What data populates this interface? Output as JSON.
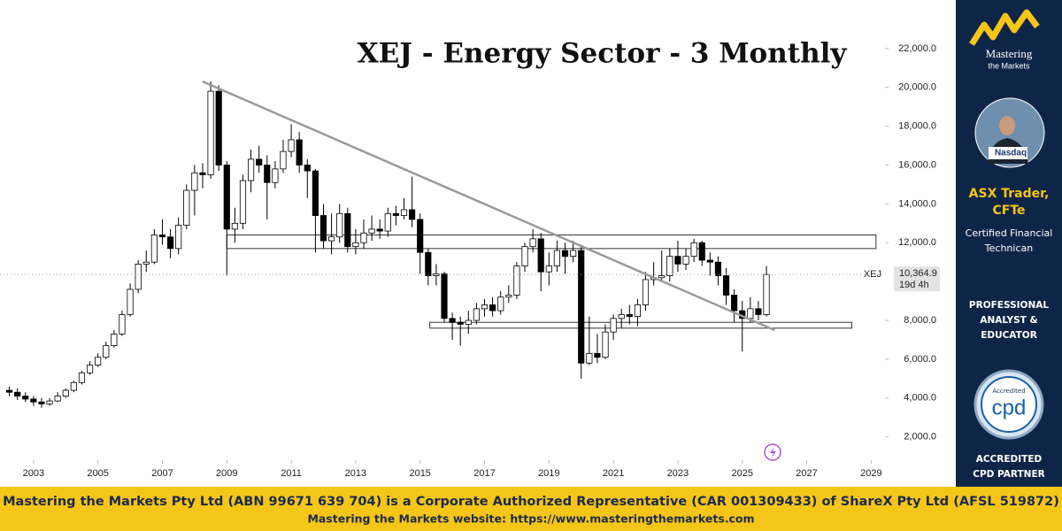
{
  "chart_data": {
    "type": "candlestick",
    "title": "XEJ - Energy Sector - 3 Monthly",
    "symbol": "XEJ",
    "last_price_label": "10,364.9",
    "countdown": "19d 4h",
    "up_color": "#ffffff",
    "down_color": "#000000",
    "xlim": [
      2001.96,
      2029.43
    ],
    "xticks": [
      2003,
      2005,
      2007,
      2009,
      2011,
      2013,
      2015,
      2017,
      2019,
      2021,
      2023,
      2025,
      2027,
      2029
    ],
    "ylim": [
      800,
      24500
    ],
    "yticks": [
      {
        "value": 2000,
        "label": "2,000.0"
      },
      {
        "value": 4000,
        "label": "4,000.0"
      },
      {
        "value": 6000,
        "label": "6,000.0"
      },
      {
        "value": 8000,
        "label": "8,000.0"
      },
      {
        "value": 12000,
        "label": "12,000.0"
      },
      {
        "value": 14000,
        "label": "14,000.0"
      },
      {
        "value": 16000,
        "label": "16,000.0"
      },
      {
        "value": 18000,
        "label": "18,000.0"
      },
      {
        "value": 20000,
        "label": "20,000.0"
      },
      {
        "value": 22000,
        "label": "22,000.0"
      }
    ],
    "x": [
      2002.25,
      2002.5,
      2002.75,
      2003,
      2003.25,
      2003.5,
      2003.75,
      2004,
      2004.25,
      2004.5,
      2004.75,
      2005,
      2005.25,
      2005.5,
      2005.75,
      2006,
      2006.25,
      2006.5,
      2006.75,
      2007,
      2007.25,
      2007.5,
      2007.75,
      2008,
      2008.25,
      2008.5,
      2008.75,
      2009,
      2009.25,
      2009.5,
      2009.75,
      2010,
      2010.25,
      2010.5,
      2010.75,
      2011,
      2011.25,
      2011.5,
      2011.75,
      2012,
      2012.25,
      2012.5,
      2012.75,
      2013,
      2013.25,
      2013.5,
      2013.75,
      2014,
      2014.25,
      2014.5,
      2014.75,
      2015,
      2015.25,
      2015.5,
      2015.75,
      2016,
      2016.25,
      2016.5,
      2016.75,
      2017,
      2017.25,
      2017.5,
      2017.75,
      2018,
      2018.25,
      2018.5,
      2018.75,
      2019,
      2019.25,
      2019.5,
      2019.75,
      2020,
      2020.25,
      2020.5,
      2020.75,
      2021,
      2021.25,
      2021.5,
      2021.75,
      2022,
      2022.25,
      2022.5,
      2022.75,
      2023,
      2023.25,
      2023.5,
      2023.75,
      2024,
      2024.25,
      2024.5,
      2024.75,
      2025,
      2025.25,
      2025.5,
      2025.75
    ],
    "open": [
      4400,
      4300,
      4100,
      3950,
      3800,
      3700,
      3850,
      4100,
      4400,
      4800,
      5300,
      5700,
      6100,
      6700,
      7300,
      8300,
      9600,
      10900,
      11000,
      12400,
      12300,
      11700,
      12900,
      14700,
      15600,
      15500,
      19800,
      16000,
      12700,
      13000,
      15200,
      16300,
      16000,
      15100,
      15800,
      16700,
      17300,
      16000,
      15700,
      13400,
      12100,
      12300,
      13500,
      11800,
      12000,
      12500,
      12700,
      12600,
      13500,
      13400,
      13700,
      13200,
      11500,
      10300,
      10400,
      8100,
      7900,
      7800,
      8000,
      8600,
      8800,
      8500,
      9200,
      9300,
      10800,
      11800,
      12200,
      10500,
      10800,
      11600,
      11300,
      11600,
      5800,
      6300,
      6100,
      7400,
      8100,
      8300,
      8200,
      8800,
      10100,
      10200,
      10300,
      11300,
      10900,
      11300,
      12000,
      11100,
      11000,
      10300,
      9300,
      8500,
      8100,
      8600,
      8300
    ],
    "high": [
      4600,
      4500,
      4300,
      4100,
      4000,
      4000,
      4300,
      4500,
      4900,
      5400,
      5900,
      6300,
      6900,
      7500,
      8500,
      9900,
      11100,
      11600,
      12700,
      13200,
      12700,
      13300,
      15000,
      16000,
      16100,
      20300,
      20100,
      16200,
      13800,
      15500,
      16800,
      17000,
      16500,
      16200,
      17300,
      18100,
      17700,
      16300,
      15800,
      14000,
      13500,
      14000,
      13800,
      12700,
      13200,
      13400,
      13200,
      13800,
      13900,
      14300,
      15400,
      13500,
      11700,
      10900,
      10500,
      8400,
      8200,
      8500,
      8900,
      9100,
      9200,
      9500,
      9800,
      11000,
      12000,
      12700,
      12500,
      11500,
      12100,
      12000,
      12100,
      11900,
      8200,
      7300,
      7800,
      8300,
      8600,
      8800,
      9100,
      10500,
      11000,
      11600,
      11700,
      12100,
      11700,
      12200,
      12100,
      11500,
      11300,
      10700,
      9600,
      9000,
      9200,
      9000,
      10800
    ],
    "low": [
      4100,
      3900,
      3800,
      3600,
      3500,
      3600,
      3800,
      4000,
      4300,
      4700,
      5200,
      5600,
      6000,
      6600,
      7200,
      8200,
      9400,
      10500,
      10900,
      11900,
      11200,
      11400,
      12700,
      13400,
      14800,
      15300,
      15700,
      10300,
      12000,
      12700,
      14600,
      15600,
      13200,
      14800,
      15600,
      16400,
      15600,
      14300,
      11500,
      11700,
      11400,
      12000,
      11500,
      11400,
      11700,
      12100,
      12200,
      12300,
      12900,
      13200,
      12800,
      10400,
      9800,
      9800,
      7900,
      7000,
      6700,
      7300,
      7800,
      8200,
      8200,
      8300,
      8900,
      9100,
      10500,
      11500,
      9500,
      9800,
      10500,
      10400,
      11000,
      5000,
      5700,
      5800,
      6000,
      7000,
      7600,
      7800,
      7700,
      8500,
      9800,
      10000,
      10000,
      10500,
      10600,
      11000,
      10800,
      10300,
      9800,
      8800,
      7900,
      6400,
      7900,
      8000,
      8200
    ],
    "close": [
      4300,
      4100,
      3950,
      3800,
      3700,
      3850,
      4100,
      4400,
      4800,
      5300,
      5700,
      6100,
      6700,
      7300,
      8300,
      9600,
      10900,
      11000,
      12400,
      12300,
      11700,
      12900,
      14700,
      15600,
      15500,
      19800,
      16000,
      12700,
      13000,
      15200,
      16300,
      16000,
      15100,
      15800,
      16700,
      17300,
      16000,
      15700,
      13400,
      12100,
      12300,
      13500,
      11800,
      12000,
      12500,
      12700,
      12600,
      13500,
      13400,
      13700,
      13200,
      11500,
      10300,
      10400,
      8100,
      7900,
      7800,
      8000,
      8600,
      8800,
      8500,
      9200,
      9300,
      10800,
      11800,
      12200,
      10500,
      10800,
      11600,
      11300,
      11600,
      5800,
      6300,
      6100,
      7400,
      8100,
      8300,
      8200,
      8800,
      10100,
      10200,
      10300,
      11300,
      10900,
      11300,
      12000,
      11100,
      11000,
      10300,
      9300,
      8500,
      8100,
      8600,
      8300,
      10364.9
    ],
    "trendline": {
      "x": [
        2008.25,
        2026.0
      ],
      "y": [
        20300,
        7500
      ]
    },
    "zones": [
      {
        "x": [
          2009.0,
          2029.15
        ],
        "y": [
          11700,
          12400
        ]
      },
      {
        "x": [
          2015.3,
          2028.4
        ],
        "y": [
          7600,
          7900
        ]
      }
    ]
  },
  "sidebar": {
    "logo_line1": "Mastering",
    "logo_line2": "the Markets",
    "photo_caption": "Nasdaq",
    "name_line1": "ASX Trader,",
    "name_line2": "CFTe",
    "cert_line1": "Certified Financial",
    "cert_line2": "Technican",
    "role_line1": "PROFESSIONAL",
    "role_line2": "ANALYST &",
    "role_line3": "EDUCATOR",
    "badge_top": "Accredited",
    "badge_main": "cpd",
    "partner_line1": "ACCREDITED",
    "partner_line2": "CPD PARTNER"
  },
  "footer": {
    "line1": "Mastering the Markets Pty Ltd (ABN 99671 639 704) is a Corporate Authorized Representative (CAR 001309433) of ShareX Pty Ltd (AFSL 519872)",
    "line2": "Mastering the Markets website: https://www.masteringthemarkets.com"
  }
}
